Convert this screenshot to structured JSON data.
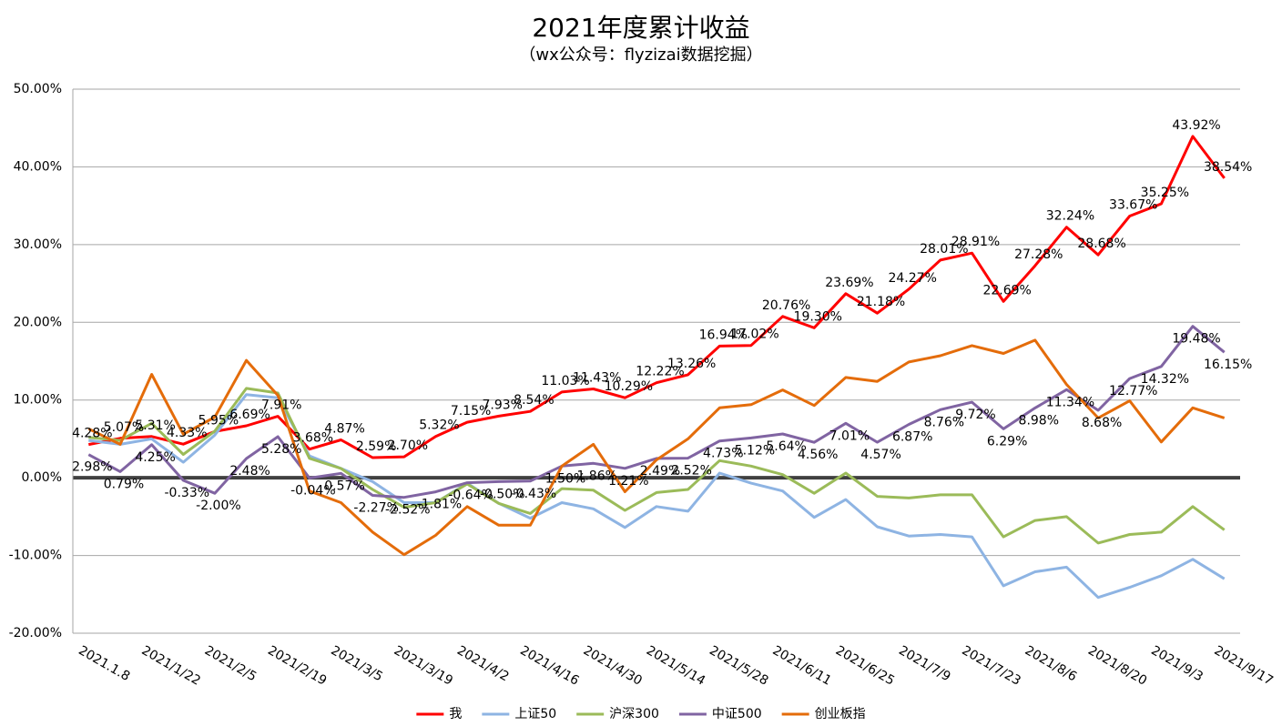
{
  "chart_data": {
    "type": "line",
    "title": "2021年度累计收益",
    "subtitle": "（wx公众号：flyzizai数据挖掘）",
    "categories": [
      "2021.1.8",
      null,
      "2021/1/22",
      null,
      "2021/2/5",
      null,
      "2021/2/19",
      null,
      "2021/3/5",
      null,
      "2021/3/19",
      null,
      "2021/4/2",
      null,
      "2021/4/16",
      null,
      "2021/4/30",
      null,
      "2021/5/14",
      null,
      "2021/5/28",
      null,
      "2021/6/11",
      null,
      "2021/6/25",
      null,
      "2021/7/9",
      null,
      "2021/7/23",
      null,
      "2021/8/6",
      null,
      "2021/8/20",
      null,
      "2021/9/3",
      null,
      "2021/9/17"
    ],
    "ylim": [
      -20,
      50
    ],
    "yticks": [
      {
        "value": -20,
        "label": "-20.00%"
      },
      {
        "value": -10,
        "label": "-10.00%"
      },
      {
        "value": 0,
        "label": "0.00%"
      },
      {
        "value": 10,
        "label": "10.00%"
      },
      {
        "value": 20,
        "label": "20.00%"
      },
      {
        "value": 30,
        "label": "30.00%"
      },
      {
        "value": 40,
        "label": "40.00%"
      },
      {
        "value": 50,
        "label": "50.00%"
      }
    ],
    "grid": true,
    "zero_line": true,
    "legend": "bottom",
    "series": [
      {
        "name": "我",
        "color": "#ff0000",
        "values": [
          4.28,
          5.07,
          5.31,
          4.33,
          5.95,
          6.69,
          7.91,
          3.68,
          4.87,
          2.59,
          2.7,
          5.32,
          7.15,
          7.93,
          8.54,
          11.03,
          11.43,
          10.29,
          12.22,
          13.26,
          16.94,
          17.02,
          20.76,
          19.3,
          23.69,
          21.18,
          24.27,
          28.01,
          28.91,
          22.69,
          27.28,
          32.24,
          28.68,
          33.67,
          35.25,
          43.92,
          38.54
        ],
        "value_labels": [
          "4.28%",
          "5.07%",
          "5.31%",
          "4.33%",
          "5.95%",
          "6.69%",
          "7.91%",
          "3.68%",
          "4.87%",
          "2.59%",
          "2.70%",
          "5.32%",
          "7.15%",
          "7.93%",
          "8.54%",
          "11.03%",
          "11.43%",
          "10.29%",
          "12.22%",
          "13.26%",
          "16.94%",
          "17.02%",
          "20.76%",
          "19.30%",
          "23.69%",
          "21.18%",
          "24.27%",
          "28.01%",
          "28.91%",
          "22.69%",
          "27.28%",
          "32.24%",
          "28.68%",
          "33.67%",
          "35.25%",
          "43.92%",
          "38.54%"
        ]
      },
      {
        "name": "上证50",
        "color": "#8eb4e3",
        "values": [
          4.8,
          4.3,
          5.0,
          2.0,
          5.5,
          10.7,
          10.3,
          2.8,
          1.2,
          -0.5,
          -3.2,
          -3.2,
          -0.7,
          -3.3,
          -5.2,
          -3.2,
          -4.0,
          -6.4,
          -3.7,
          -4.3,
          0.6,
          -0.7,
          -1.7,
          -5.1,
          -2.8,
          -6.3,
          -7.5,
          -7.3,
          -7.6,
          -13.9,
          -12.1,
          -11.5,
          -15.4,
          -14.1,
          -12.6,
          -10.5,
          -13.0
        ]
      },
      {
        "name": "沪深300",
        "color": "#9bbb59",
        "values": [
          5.2,
          4.8,
          7.0,
          3.0,
          6.0,
          11.5,
          10.9,
          2.5,
          1.2,
          -1.5,
          -3.8,
          -3.2,
          -0.8,
          -3.3,
          -4.6,
          -1.4,
          -1.6,
          -4.2,
          -1.9,
          -1.5,
          2.2,
          1.5,
          0.4,
          -2.0,
          0.6,
          -2.4,
          -2.6,
          -2.2,
          -2.2,
          -7.6,
          -5.5,
          -5.0,
          -8.4,
          -7.3,
          -7.0,
          -3.7,
          -6.7
        ]
      },
      {
        "name": "中证500",
        "color": "#8064a2",
        "values": [
          2.98,
          0.79,
          4.25,
          -0.33,
          -2.0,
          2.48,
          5.28,
          -0.04,
          0.57,
          -2.27,
          -2.52,
          -1.81,
          -0.64,
          -0.5,
          -0.43,
          1.5,
          1.86,
          1.21,
          2.49,
          2.52,
          4.73,
          5.12,
          5.64,
          4.56,
          7.01,
          4.57,
          6.87,
          8.76,
          9.72,
          6.29,
          8.98,
          11.34,
          8.68,
          12.77,
          14.32,
          19.48,
          16.15
        ],
        "value_labels": [
          "2.98%",
          "0.79%",
          "4.25%",
          "-0.33%",
          "-2.00%",
          "2.48%",
          "5.28%",
          "-0.04%",
          "0.57%",
          "-2.27%",
          "-2.52%",
          "-1.81%",
          "-0.64%",
          "-0.50%",
          "-0.43%",
          "1.50%",
          "1.86%",
          "1.21%",
          "2.49%",
          "2.52%",
          "4.73%",
          "5.12%",
          "5.64%",
          "4.56%",
          "7.01%",
          "4.57%",
          "6.87%",
          "8.76%",
          "9.72%",
          "6.29%",
          "8.98%",
          "11.34%",
          "8.68%",
          "12.77%",
          "14.32%",
          "19.48%",
          "16.15%"
        ]
      },
      {
        "name": "创业板指",
        "color": "#e46c0a",
        "values": [
          6.3,
          4.3,
          13.3,
          5.6,
          7.8,
          15.1,
          10.6,
          -1.7,
          -3.2,
          -7.0,
          -9.9,
          -7.4,
          -3.7,
          -6.1,
          -6.1,
          1.5,
          4.3,
          -1.8,
          2.3,
          5.0,
          9.0,
          9.4,
          11.3,
          9.3,
          12.9,
          12.4,
          14.9,
          15.7,
          17.0,
          16.0,
          17.7,
          12.0,
          7.7,
          9.9,
          4.6,
          9.0,
          7.7
        ]
      }
    ]
  }
}
